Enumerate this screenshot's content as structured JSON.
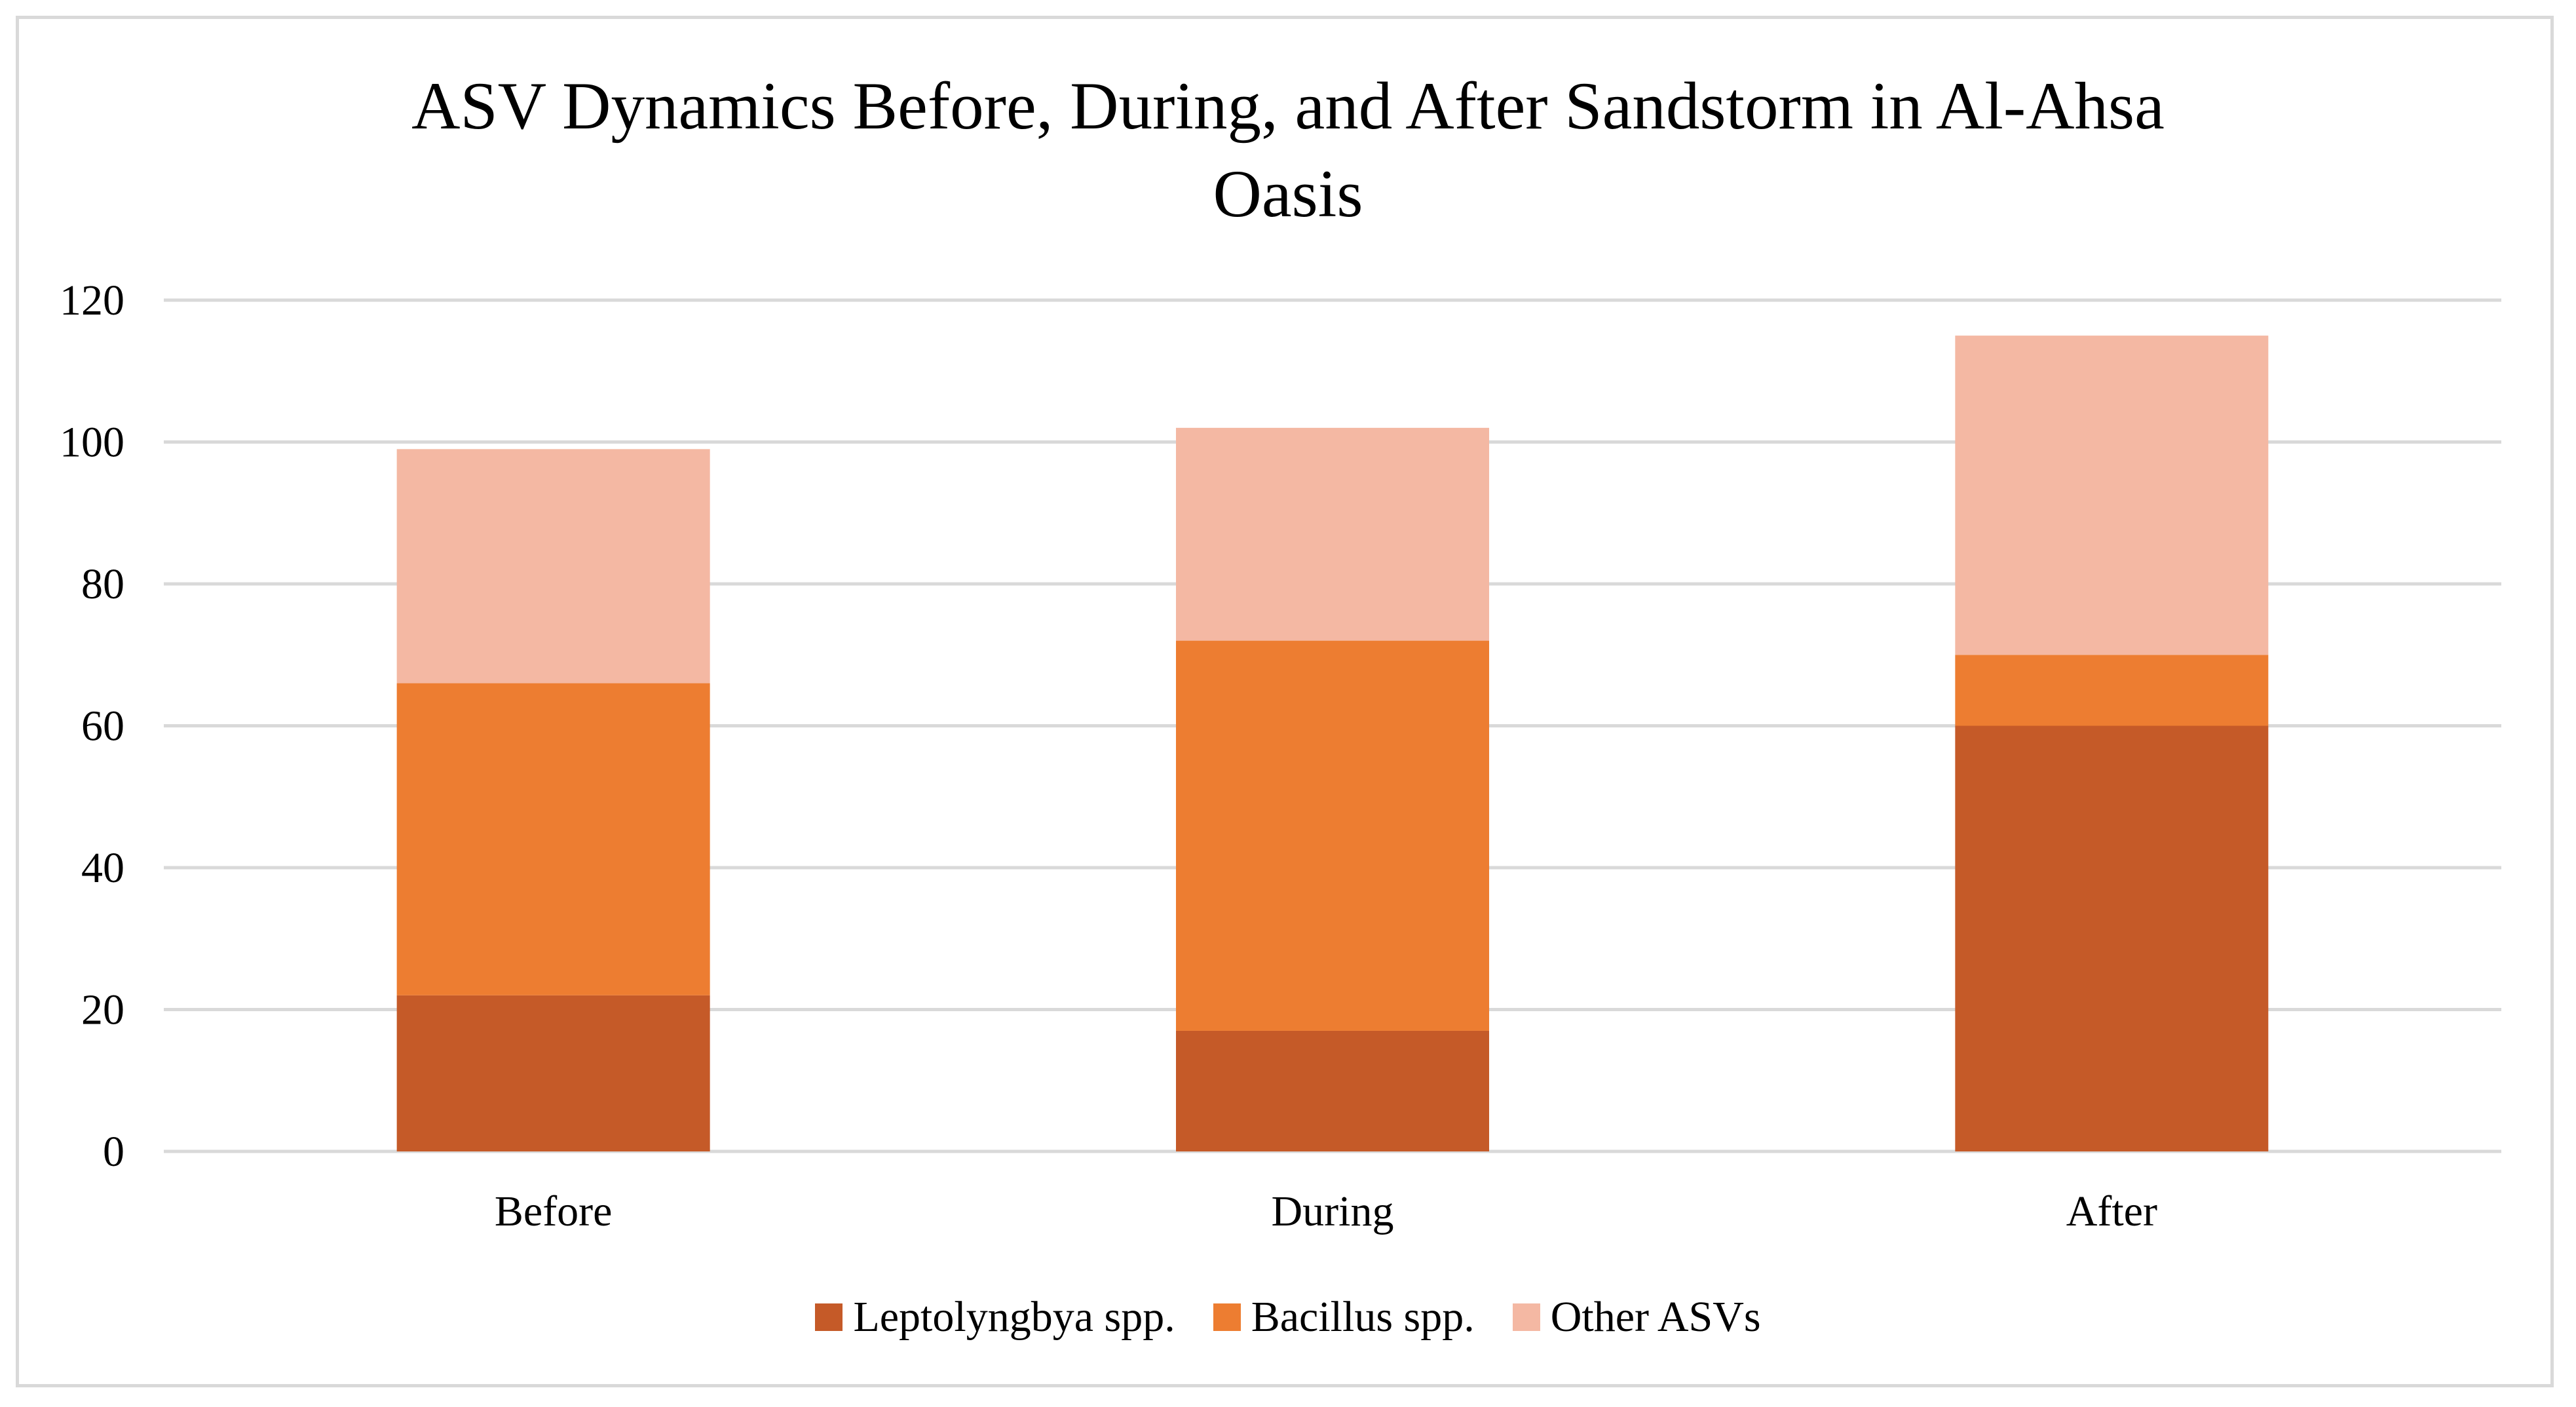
{
  "chart_data": {
    "type": "bar",
    "stacked": true,
    "title": "ASV Dynamics Before, During, and After Sandstorm in Al-Ahsa Oasis",
    "title_lines": [
      "ASV Dynamics Before, During, and After Sandstorm in Al-Ahsa",
      "Oasis"
    ],
    "categories": [
      "Before",
      "During",
      "After"
    ],
    "series": [
      {
        "name": "Leptolyngbya spp.",
        "color": "#c55a28",
        "values": [
          22,
          17,
          60
        ]
      },
      {
        "name": "Bacillus spp.",
        "color": "#ed7d31",
        "values": [
          44,
          55,
          10
        ]
      },
      {
        "name": "Other ASVs",
        "color": "#f4b8a3",
        "values": [
          33,
          30,
          45
        ]
      }
    ],
    "ylim": [
      0,
      120
    ],
    "yticks": [
      0,
      20,
      40,
      60,
      80,
      100,
      120
    ],
    "xlabel": "",
    "ylabel": "",
    "grid": true,
    "legend_position": "bottom"
  },
  "colors": {
    "gridline": "#d9d9d9",
    "frame": "#d9d9d9"
  }
}
